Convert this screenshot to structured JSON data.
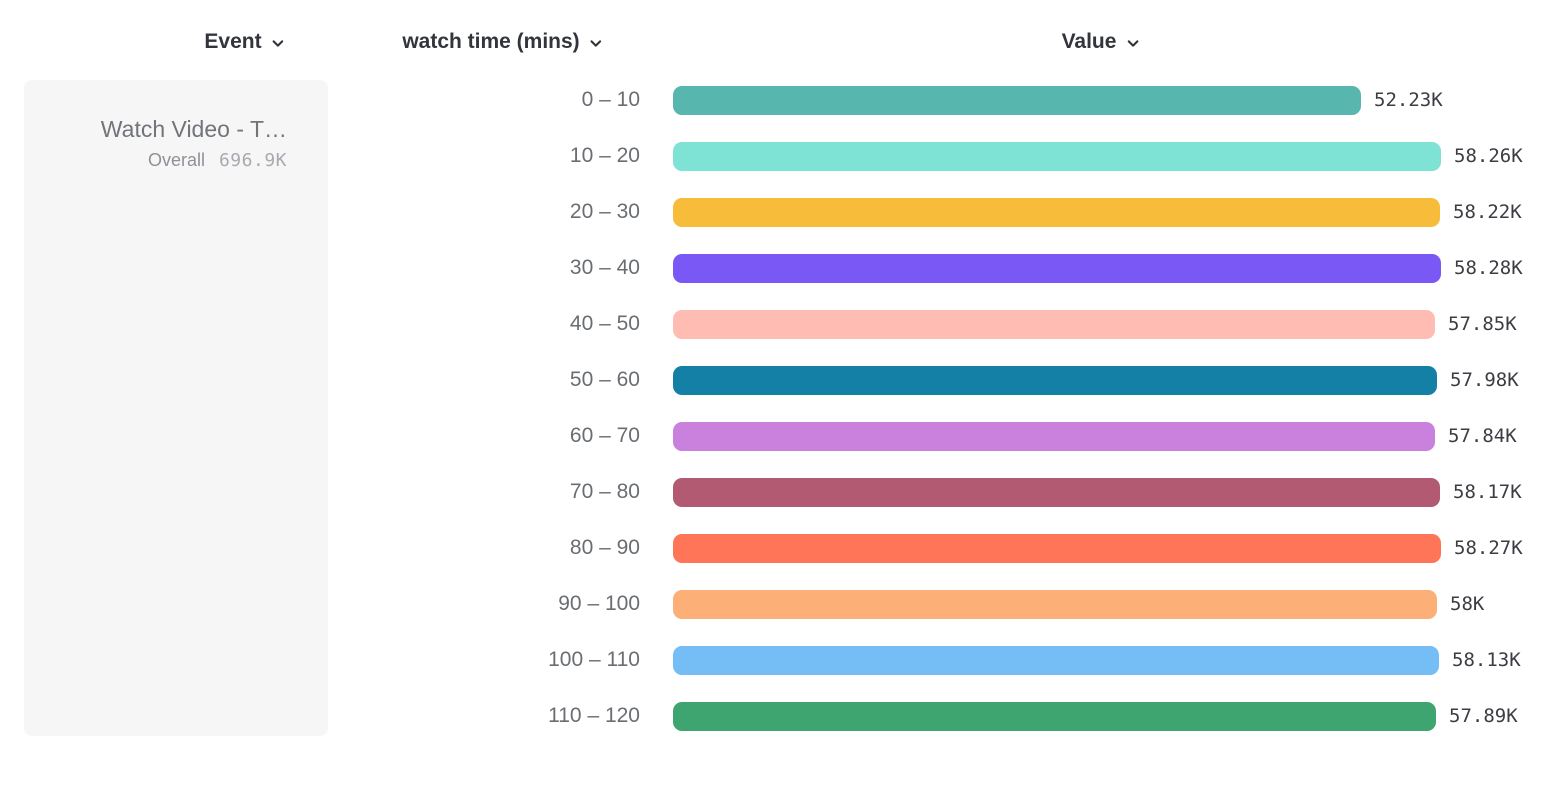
{
  "header": {
    "event_column": "Event",
    "breakdown_column": "watch time (mins)",
    "value_column": "Value"
  },
  "event_panel": {
    "event_name": "Watch Video - T…",
    "overall_label": "Overall",
    "overall_value": "696.9K"
  },
  "chart_data": {
    "type": "bar",
    "orientation": "horizontal",
    "title": "",
    "xlabel": "Value",
    "ylabel": "watch time (mins)",
    "categories": [
      "0 – 10",
      "10 – 20",
      "20 – 30",
      "30 – 40",
      "40 – 50",
      "50 – 60",
      "60 – 70",
      "70 – 80",
      "80 – 90",
      "90 – 100",
      "100 – 110",
      "110 – 120"
    ],
    "values": [
      52230,
      58260,
      58220,
      58280,
      57850,
      57980,
      57840,
      58170,
      58270,
      58000,
      58130,
      57890
    ],
    "display_values": [
      "52.23K",
      "58.26K",
      "58.22K",
      "58.28K",
      "57.85K",
      "57.98K",
      "57.84K",
      "58.17K",
      "58.27K",
      "58K",
      "58.13K",
      "57.89K"
    ],
    "bar_colors": [
      "#57B6AD",
      "#7EE2D4",
      "#F8BC3B",
      "#7A58F5",
      "#1580A5",
      "#C981DD",
      "#B25A72",
      "#FE7557",
      "#FCB077",
      "#74BEF5",
      "#3EA571"
    ],
    "bar_colors_by_row": [
      "#57B6AD",
      "#7EE2D4",
      "#F8BC3B",
      "#7A58F5",
      "#FEBCB2",
      "#1580A5",
      "#C981DD",
      "#B25A72",
      "#FE7557",
      "#FCB077",
      "#74BEF5",
      "#3EA571"
    ],
    "xlim": [
      0,
      58280
    ],
    "grid": false,
    "legend": "none"
  }
}
